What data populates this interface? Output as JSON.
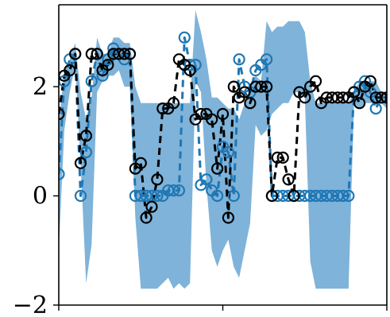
{
  "chart_data": {
    "type": "line",
    "title": "",
    "xlabel": "",
    "ylabel": "",
    "xlim": [
      0,
      60
    ],
    "ylim": [
      -2,
      3.5
    ],
    "yticks": [
      -2,
      0,
      2
    ],
    "ytick_labels": [
      "−2",
      "0",
      "2"
    ],
    "xticks": [
      0,
      30,
      60
    ],
    "xtick_labels": [
      "",
      "",
      ""
    ],
    "grid": false,
    "legend": "none",
    "colors": {
      "band": "#7fb3d9",
      "mean_line": "#1f77b4",
      "data_line": "#000000"
    },
    "band": {
      "x": [
        0,
        1,
        2,
        3,
        4,
        5,
        6,
        7,
        8,
        9,
        10,
        11,
        12,
        13,
        14,
        15,
        16,
        17,
        18,
        19,
        20,
        21,
        22,
        23,
        24,
        25,
        26,
        27,
        28,
        29,
        30,
        31,
        32,
        33,
        34,
        35,
        36,
        37,
        38,
        39,
        40,
        41,
        42,
        43,
        44,
        45,
        46,
        47,
        48,
        49,
        50,
        51,
        52,
        53,
        54,
        55,
        56,
        57,
        58,
        59,
        60
      ],
      "upper": [
        1.3,
        2.3,
        2.5,
        2.8,
        1.9,
        1.4,
        1.8,
        2.9,
        2.6,
        2.6,
        2.9,
        2.9,
        2.8,
        2.8,
        2.0,
        1.7,
        1.7,
        1.7,
        1.7,
        1.7,
        1.7,
        1.7,
        1.7,
        1.7,
        1.7,
        3.4,
        3.0,
        2.5,
        1.8,
        1.8,
        1.7,
        1.6,
        1.6,
        1.4,
        1.7,
        2.0,
        2.2,
        2.1,
        3.2,
        3.0,
        3.1,
        3.1,
        3.2,
        3.2,
        3.2,
        3.0,
        2.1,
        1.7,
        1.7,
        1.7,
        1.7,
        1.7,
        1.7,
        1.7,
        1.9,
        2.1,
        2.1,
        2.1,
        2.1,
        1.9,
        1.9
      ],
      "lower": [
        -1.0,
        1.2,
        1.9,
        2.4,
        0.6,
        -1.6,
        -0.9,
        1.9,
        2.1,
        2.2,
        2.2,
        2.3,
        2.0,
        2.0,
        -0.4,
        -1.7,
        -1.7,
        -1.7,
        -1.7,
        -1.6,
        -1.5,
        -1.7,
        -1.6,
        -1.7,
        -1.6,
        2.1,
        1.9,
        0.2,
        -1.0,
        -1.3,
        -1.0,
        -0.8,
        -1.3,
        -1.5,
        -1.0,
        -0.5,
        1.3,
        1.1,
        1.2,
        1.5,
        1.6,
        1.7,
        1.7,
        1.9,
        1.9,
        1.8,
        -1.2,
        -1.7,
        -1.7,
        -1.7,
        -1.7,
        -1.7,
        -1.7,
        -1.7,
        1.7,
        1.6,
        1.7,
        1.7,
        1.7,
        1.7,
        1.6
      ]
    },
    "series": [
      {
        "x": [
          0,
          1,
          2,
          3,
          4,
          5,
          6,
          7,
          8,
          9,
          10,
          11,
          12,
          13,
          14,
          15,
          16,
          17,
          18,
          19,
          20,
          21,
          22,
          23,
          24,
          25,
          26,
          27,
          28,
          29,
          30,
          31,
          32,
          33,
          34,
          35,
          36,
          37,
          38,
          39,
          40,
          41,
          42,
          43,
          44,
          45,
          46,
          47,
          48,
          49,
          50,
          51,
          52,
          53,
          54,
          55,
          56,
          57,
          58,
          59,
          60
        ],
        "values": [
          0.4,
          2.1,
          2.5,
          2.6,
          0.0,
          0.8,
          2.1,
          2.6,
          2.2,
          2.5,
          2.7,
          2.6,
          2.5,
          2.6,
          0.0,
          0.0,
          0.0,
          0.0,
          0.0,
          0.0,
          0.1,
          0.1,
          0.1,
          2.9,
          2.4,
          2.4,
          0.2,
          0.3,
          0.1,
          0.0,
          0.9,
          0.8,
          0.0,
          2.5,
          2.0,
          1.9,
          2.3,
          2.4,
          2.5,
          0.0,
          0.0,
          0.0,
          0.0,
          0.0,
          0.0,
          0.0,
          0.0,
          0.0,
          0.0,
          0.0,
          0.0,
          0.0,
          0.0,
          0.0,
          1.9,
          2.0,
          2.1,
          1.9,
          1.6,
          1.8,
          1.8
        ],
        "role": "mean",
        "marker": "circle",
        "dashed": true
      },
      {
        "x": [
          0,
          1,
          2,
          3,
          4,
          5,
          6,
          7,
          8,
          9,
          10,
          11,
          12,
          13,
          14,
          15,
          16,
          17,
          18,
          19,
          20,
          21,
          22,
          23,
          24,
          25,
          26,
          27,
          28,
          29,
          30,
          31,
          32,
          33,
          34,
          35,
          36,
          37,
          38,
          39,
          40,
          41,
          42,
          43,
          44,
          45,
          46,
          47,
          48,
          49,
          50,
          51,
          52,
          53,
          54,
          55,
          56,
          57,
          58,
          59,
          60
        ],
        "values": [
          1.5,
          2.2,
          2.3,
          2.6,
          0.6,
          1.1,
          2.6,
          2.6,
          2.3,
          2.4,
          2.6,
          2.6,
          2.6,
          2.6,
          0.5,
          0.6,
          -0.4,
          -0.2,
          0.3,
          1.6,
          1.6,
          1.7,
          2.5,
          2.4,
          2.3,
          1.4,
          1.5,
          1.5,
          1.4,
          0.5,
          1.5,
          -0.4,
          2.0,
          1.8,
          1.9,
          1.7,
          2.0,
          2.0,
          2.0,
          0.0,
          0.7,
          0.7,
          0.3,
          0.0,
          1.9,
          1.8,
          2.0,
          2.1,
          1.7,
          1.8,
          1.8,
          1.8,
          1.8,
          1.8,
          1.9,
          1.7,
          2.0,
          2.1,
          1.8,
          1.8,
          1.8
        ],
        "role": "observed",
        "marker": "circle",
        "dashed": true
      }
    ]
  }
}
